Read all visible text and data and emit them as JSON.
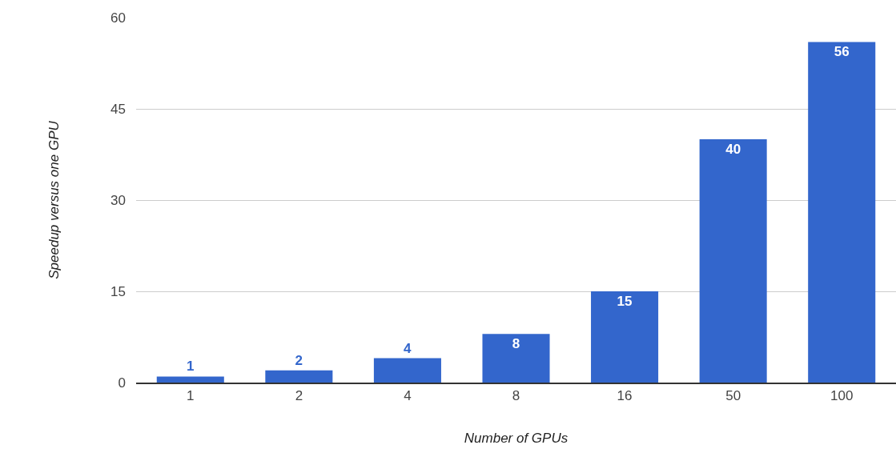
{
  "chart_data": {
    "type": "bar",
    "xlabel": "Number of GPUs",
    "ylabel": "Speedup versus one GPU",
    "categories": [
      "1",
      "2",
      "4",
      "8",
      "16",
      "50",
      "100"
    ],
    "values": [
      1,
      2,
      4,
      8,
      15,
      40,
      56
    ],
    "color": "#3366cc",
    "ylim": [
      0,
      60
    ],
    "yticks": [
      0,
      15,
      30,
      45,
      60
    ],
    "grid": "y",
    "data_labels": true
  }
}
